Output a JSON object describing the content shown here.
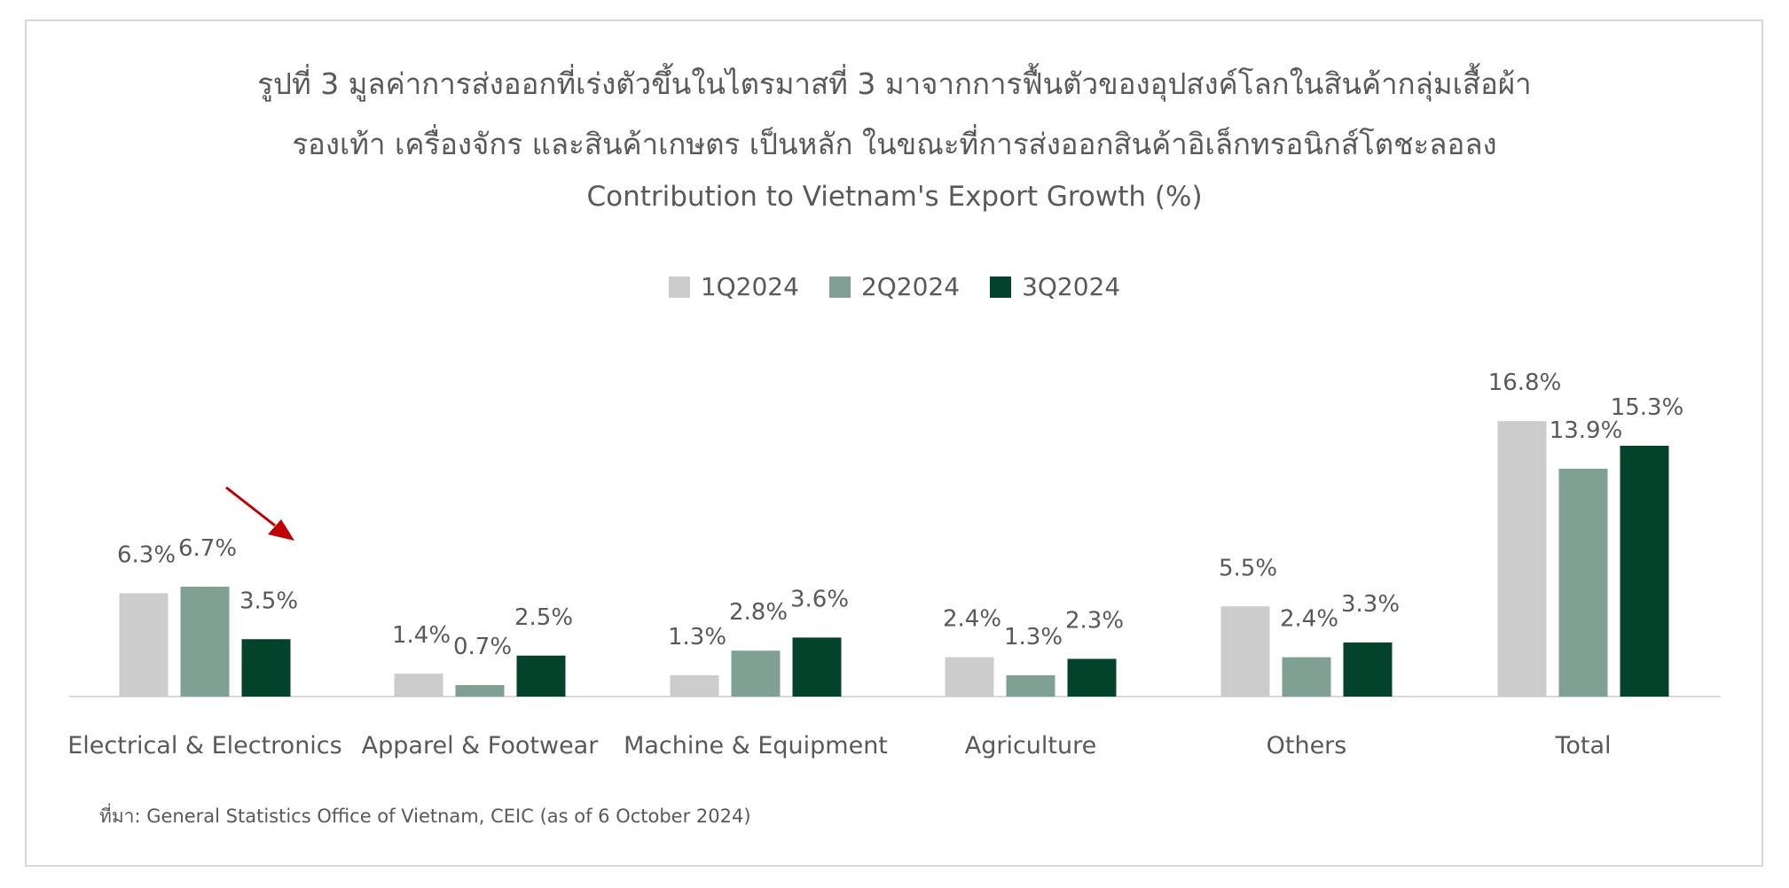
{
  "title_line1": "รูปที่ 3 มูลค่าการส่งออกที่เร่งตัวขึ้นในไตรมาสที่ 3 มาจากการฟื้นตัวของอุปสงค์โลกในสินค้ากลุ่มเสื้อผ้า",
  "title_line2": "รองเท้า เครื่องจักร และสินค้าเกษตร เป็นหลัก ในขณะที่การส่งออกสินค้าอิเล็กทรอนิกส์โตชะลอลง",
  "source": "ที่มา: General Statistics Office of Vietnam, CEIC (as of 6 October 2024)",
  "chart_data": {
    "type": "bar",
    "title": "Contribution to Vietnam's Export Growth (%)",
    "categories": [
      "Electrical & Electronics",
      "Apparel & Footwear",
      "Machine & Equipment",
      "Agriculture",
      "Others",
      "Total"
    ],
    "series": [
      {
        "name": "1Q2024",
        "color": "#cccccc",
        "values": [
          6.3,
          1.4,
          1.3,
          2.4,
          5.5,
          16.8
        ],
        "labels": [
          "6.3%",
          "1.4%",
          "1.3%",
          "2.4%",
          "5.5%",
          "16.8%"
        ]
      },
      {
        "name": "2Q2024",
        "color": "#7fa093",
        "values": [
          6.7,
          0.7,
          2.8,
          1.3,
          2.4,
          13.9
        ],
        "labels": [
          "6.7%",
          "0.7%",
          "2.8%",
          "1.3%",
          "2.4%",
          "13.9%"
        ]
      },
      {
        "name": "3Q2024",
        "color": "#03432b",
        "values": [
          3.5,
          2.5,
          3.6,
          2.3,
          3.3,
          15.3
        ],
        "labels": [
          "3.5%",
          "2.5%",
          "3.6%",
          "2.3%",
          "3.3%",
          "15.3%"
        ]
      }
    ],
    "ylim": [
      0,
      20
    ],
    "legend": "top-center",
    "grid": false,
    "annotation": {
      "type": "arrow",
      "color": "#c00000",
      "target": "Electrical & Electronics"
    }
  }
}
